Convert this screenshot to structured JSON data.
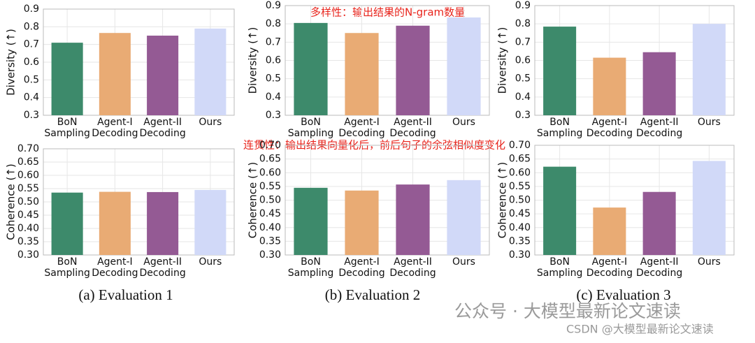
{
  "chart_data": [
    {
      "type": "bar",
      "ylabel": "Diversity (↑)",
      "categories": [
        [
          "BoN",
          "Sampling"
        ],
        [
          "Agent-I",
          "Decoding"
        ],
        [
          "Agent-II",
          "Decoding"
        ],
        [
          "Ours"
        ]
      ],
      "values": [
        0.71,
        0.765,
        0.75,
        0.79
      ],
      "colors": [
        "#3d8a6b",
        "#e9ab74",
        "#945a94",
        "#d1d9f8"
      ],
      "ylim": [
        0.3,
        0.9
      ],
      "yticks": [
        0.3,
        0.4,
        0.5,
        0.6,
        0.7,
        0.8,
        0.9
      ],
      "grid": true
    },
    {
      "type": "bar",
      "ylabel": "Diversity (↑)",
      "categories": [
        [
          "BoN",
          "Sampling"
        ],
        [
          "Agent-I",
          "Decoding"
        ],
        [
          "Agent-II",
          "Decoding"
        ],
        [
          "Ours"
        ]
      ],
      "values": [
        0.805,
        0.75,
        0.79,
        0.835
      ],
      "colors": [
        "#3d8a6b",
        "#e9ab74",
        "#945a94",
        "#d1d9f8"
      ],
      "ylim": [
        0.3,
        0.9
      ],
      "yticks": [
        0.3,
        0.4,
        0.5,
        0.6,
        0.7,
        0.8,
        0.9
      ],
      "grid": true
    },
    {
      "type": "bar",
      "ylabel": "Diversity (↑)",
      "categories": [
        [
          "BoN",
          "Sampling"
        ],
        [
          "Agent-I",
          "Decoding"
        ],
        [
          "Agent-II",
          "Decoding"
        ],
        [
          "Ours"
        ]
      ],
      "values": [
        0.785,
        0.615,
        0.645,
        0.8
      ],
      "colors": [
        "#3d8a6b",
        "#e9ab74",
        "#945a94",
        "#d1d9f8"
      ],
      "ylim": [
        0.3,
        0.9
      ],
      "yticks": [
        0.3,
        0.4,
        0.5,
        0.6,
        0.7,
        0.8,
        0.9
      ],
      "grid": true
    },
    {
      "type": "bar",
      "ylabel": "Coherence (↑)",
      "categories": [
        [
          "BoN",
          "Sampling"
        ],
        [
          "Agent-I",
          "Decoding"
        ],
        [
          "Agent-II",
          "Decoding"
        ],
        [
          "Ours"
        ]
      ],
      "values": [
        0.535,
        0.538,
        0.537,
        0.545
      ],
      "colors": [
        "#3d8a6b",
        "#e9ab74",
        "#945a94",
        "#d1d9f8"
      ],
      "ylim": [
        0.3,
        0.7
      ],
      "yticks": [
        {
          "value": 0.3,
          "label": "0.30"
        },
        {
          "value": 0.35,
          "label": "0.35"
        },
        {
          "value": 0.4,
          "label": "0.40"
        },
        {
          "value": 0.45,
          "label": "0.45"
        },
        {
          "value": 0.5,
          "label": "0.50"
        },
        {
          "value": 0.55,
          "label": "0.55"
        },
        {
          "value": 0.6,
          "label": "0.60"
        },
        {
          "value": 0.65,
          "label": "0.65"
        },
        {
          "value": 0.7,
          "label": "0.70"
        }
      ],
      "grid": true
    },
    {
      "type": "bar",
      "ylabel": "Coherence (↑)",
      "categories": [
        [
          "BoN",
          "Sampling"
        ],
        [
          "Agent-I",
          "Decoding"
        ],
        [
          "Agent-II",
          "Decoding"
        ],
        [
          "Ours"
        ]
      ],
      "values": [
        0.545,
        0.535,
        0.557,
        0.573
      ],
      "colors": [
        "#3d8a6b",
        "#e9ab74",
        "#945a94",
        "#d1d9f8"
      ],
      "ylim": [
        0.3,
        0.7
      ],
      "yticks": [
        {
          "value": 0.3,
          "label": "0.30"
        },
        {
          "value": 0.35,
          "label": "0.35"
        },
        {
          "value": 0.4,
          "label": "0.40"
        },
        {
          "value": 0.45,
          "label": "0.45"
        },
        {
          "value": 0.5,
          "label": "0.50"
        },
        {
          "value": 0.55,
          "label": "0.55"
        },
        {
          "value": 0.6,
          "label": "0.60"
        },
        {
          "value": 0.65,
          "label": "0.65"
        },
        {
          "value": 0.7,
          "label": "0.70"
        }
      ],
      "grid": true
    },
    {
      "type": "bar",
      "ylabel": "Coherence (↑)",
      "categories": [
        [
          "BoN",
          "Sampling"
        ],
        [
          "Agent-I",
          "Decoding"
        ],
        [
          "Agent-II",
          "Decoding"
        ],
        [
          "Ours"
        ]
      ],
      "values": [
        0.622,
        0.473,
        0.53,
        0.643
      ],
      "colors": [
        "#3d8a6b",
        "#e9ab74",
        "#945a94",
        "#d1d9f8"
      ],
      "ylim": [
        0.3,
        0.7
      ],
      "yticks": [
        {
          "value": 0.3,
          "label": "0.30"
        },
        {
          "value": 0.35,
          "label": "0.35"
        },
        {
          "value": 0.4,
          "label": "0.40"
        },
        {
          "value": 0.45,
          "label": "0.45"
        },
        {
          "value": 0.5,
          "label": "0.50"
        },
        {
          "value": 0.55,
          "label": "0.55"
        },
        {
          "value": 0.6,
          "label": "0.60"
        },
        {
          "value": 0.65,
          "label": "0.65"
        },
        {
          "value": 0.7,
          "label": "0.70"
        }
      ],
      "grid": true
    }
  ],
  "captions": [
    "(a) Evaluation 1",
    "(b) Evaluation 2",
    "(c) Evaluation 3"
  ],
  "annotations": [
    "多样性：输出结果的N-gram数量",
    "连贯性：输出结果向量化后，前后句子的余弦相似度变化"
  ],
  "watermarks": [
    "公众号 · 大模型最新论文速读",
    "CSDN @大模型最新论文速读"
  ]
}
